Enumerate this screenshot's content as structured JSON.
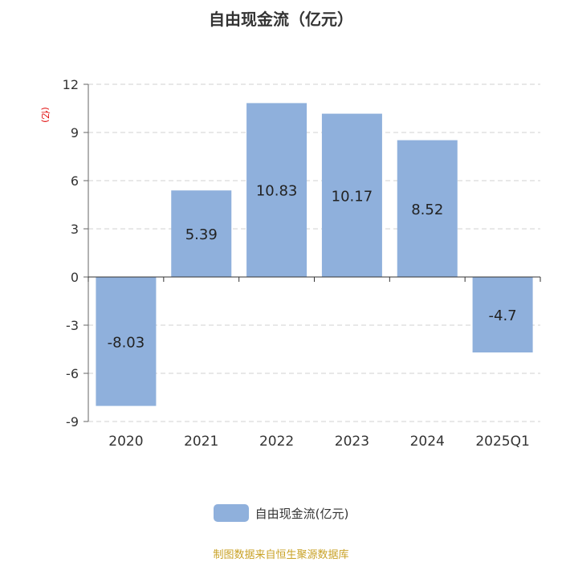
{
  "chart_data": {
    "type": "bar",
    "title": "自由现金流（亿元）",
    "unit_label": "(亿)",
    "categories": [
      "2020",
      "2021",
      "2022",
      "2023",
      "2024",
      "2025Q1"
    ],
    "series": [
      {
        "name": "自由现金流(亿元)",
        "values": [
          -8.03,
          5.39,
          10.83,
          10.17,
          8.52,
          -4.7
        ],
        "labels": [
          "-8.03",
          "5.39",
          "10.83",
          "10.17",
          "8.52",
          "-4.7"
        ]
      }
    ],
    "yticks": [
      12,
      9,
      6,
      3,
      0,
      -3,
      -6,
      -9
    ],
    "ylim": [
      -9,
      12
    ],
    "grid": true,
    "legend": "bottom-center",
    "colors": {
      "bar": "#8fb0dc",
      "unit": "#e00000",
      "source": "#c9a227"
    }
  },
  "footer": {
    "source": "制图数据来自恒生聚源数据库"
  }
}
